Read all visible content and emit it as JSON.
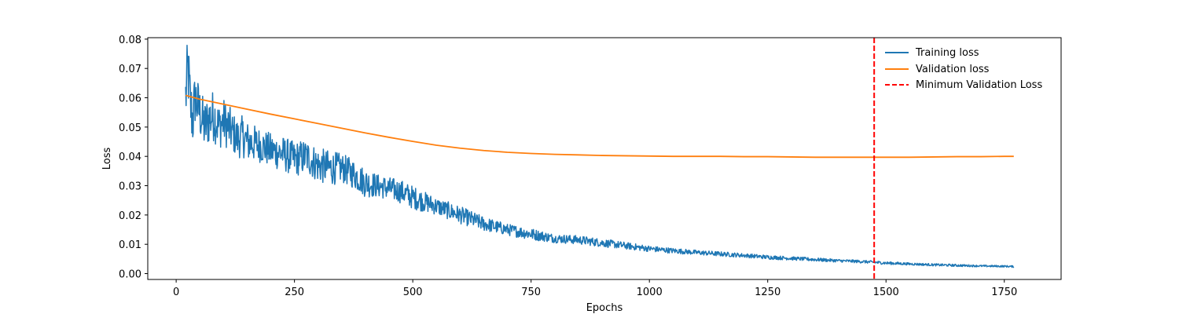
{
  "chart_data": {
    "type": "line",
    "title": "",
    "xlabel": "Epochs",
    "ylabel": "Loss",
    "xlim": [
      -60,
      1870
    ],
    "ylim": [
      -0.002,
      0.0805
    ],
    "xticks": [
      0,
      250,
      500,
      750,
      1000,
      1250,
      1500,
      1750
    ],
    "xtick_labels": [
      "0",
      "250",
      "500",
      "750",
      "1000",
      "1250",
      "1500",
      "1750"
    ],
    "yticks": [
      0.0,
      0.01,
      0.02,
      0.03,
      0.04,
      0.05,
      0.06,
      0.07,
      0.08
    ],
    "ytick_labels": [
      "0.00",
      "0.01",
      "0.02",
      "0.03",
      "0.04",
      "0.05",
      "0.06",
      "0.07",
      "0.08"
    ],
    "grid": false,
    "legend_position": "top-right",
    "colors": {
      "training": "#1f77b4",
      "validation": "#ff7f0e",
      "min_line": "#ff0000"
    },
    "series": [
      {
        "name": "Training loss",
        "x": [
          20,
          25,
          30,
          35,
          40,
          50,
          60,
          70,
          80,
          90,
          100,
          110,
          120,
          130,
          140,
          150,
          175,
          200,
          225,
          250,
          275,
          300,
          325,
          350,
          375,
          400,
          425,
          450,
          475,
          500,
          550,
          600,
          650,
          700,
          750,
          800,
          850,
          900,
          950,
          1000,
          1050,
          1100,
          1150,
          1200,
          1250,
          1300,
          1350,
          1400,
          1450,
          1500,
          1550,
          1600,
          1650,
          1700,
          1750,
          1770
        ],
        "y": [
          0.06,
          0.07,
          0.058,
          0.052,
          0.06,
          0.055,
          0.05,
          0.053,
          0.054,
          0.05,
          0.052,
          0.05,
          0.048,
          0.046,
          0.047,
          0.045,
          0.044,
          0.042,
          0.041,
          0.039,
          0.04,
          0.037,
          0.036,
          0.036,
          0.034,
          0.031,
          0.03,
          0.029,
          0.028,
          0.026,
          0.023,
          0.02,
          0.017,
          0.015,
          0.0135,
          0.012,
          0.0115,
          0.0105,
          0.0095,
          0.0085,
          0.0078,
          0.0072,
          0.0067,
          0.0062,
          0.0056,
          0.0052,
          0.0048,
          0.0044,
          0.0041,
          0.0036,
          0.0033,
          0.003,
          0.0028,
          0.0026,
          0.0025,
          0.0024
        ],
        "noise_amplitude": [
          0.012,
          0.012,
          0.011,
          0.01,
          0.01,
          0.009,
          0.009,
          0.009,
          0.009,
          0.008,
          0.008,
          0.008,
          0.007,
          0.007,
          0.007,
          0.007,
          0.006,
          0.006,
          0.006,
          0.006,
          0.006,
          0.006,
          0.006,
          0.005,
          0.005,
          0.005,
          0.004,
          0.004,
          0.004,
          0.004,
          0.003,
          0.003,
          0.0025,
          0.002,
          0.002,
          0.0015,
          0.0015,
          0.0014,
          0.0012,
          0.001,
          0.0009,
          0.0008,
          0.0008,
          0.0007,
          0.0007,
          0.0006,
          0.0006,
          0.0005,
          0.0005,
          0.0005,
          0.0004,
          0.0004,
          0.0004,
          0.0003,
          0.0003,
          0.0003
        ]
      },
      {
        "name": "Validation loss",
        "x": [
          20,
          50,
          100,
          150,
          200,
          250,
          300,
          350,
          400,
          450,
          500,
          550,
          600,
          650,
          700,
          750,
          800,
          850,
          900,
          950,
          1000,
          1050,
          1100,
          1150,
          1200,
          1250,
          1300,
          1350,
          1400,
          1450,
          1475,
          1500,
          1550,
          1600,
          1650,
          1700,
          1750,
          1770
        ],
        "y": [
          0.0608,
          0.0595,
          0.0578,
          0.0561,
          0.0544,
          0.0528,
          0.0512,
          0.0496,
          0.048,
          0.0465,
          0.0451,
          0.0438,
          0.0428,
          0.042,
          0.0414,
          0.041,
          0.0407,
          0.0405,
          0.0403,
          0.0402,
          0.0401,
          0.04,
          0.04,
          0.04,
          0.0399,
          0.0399,
          0.0398,
          0.0397,
          0.0397,
          0.0397,
          0.0397,
          0.0397,
          0.0397,
          0.0398,
          0.0399,
          0.0399,
          0.04,
          0.04
        ]
      }
    ],
    "vline": {
      "name": "Minimum Validation Loss",
      "x": 1475,
      "style": "dashed"
    }
  }
}
